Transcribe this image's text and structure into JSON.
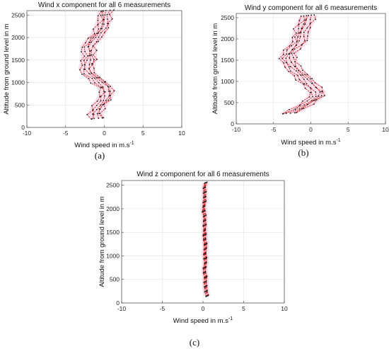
{
  "chart_data": [
    {
      "type": "line",
      "title": "Wind x component for all 6 measurements",
      "xlabel": "Wind speed in m.s",
      "xlabel_sup": "-1",
      "ylabel": "Altitude from ground level in m",
      "xlim": [
        -10,
        10
      ],
      "ylim": [
        0,
        2600
      ],
      "xticks": [
        "-10",
        "-5",
        "0",
        "5",
        "10"
      ],
      "yticks": [
        "0",
        "500",
        "1000",
        "1500",
        "2000",
        "2500"
      ],
      "grid": true,
      "caption": "(a)",
      "line_color": "#cc1a1a",
      "marker_color": "#1a1a1a",
      "band_color": "#f3a7c8",
      "profile": [
        [
          200,
          -1.0
        ],
        [
          300,
          -1.2
        ],
        [
          400,
          -0.9
        ],
        [
          500,
          -0.6
        ],
        [
          600,
          -0.2
        ],
        [
          700,
          0.2
        ],
        [
          800,
          0.3
        ],
        [
          900,
          0.1
        ],
        [
          1000,
          -0.7
        ],
        [
          1100,
          -1.4
        ],
        [
          1200,
          -2.0
        ],
        [
          1300,
          -2.3
        ],
        [
          1400,
          -2.2
        ],
        [
          1500,
          -2.0
        ],
        [
          1600,
          -2.0
        ],
        [
          1700,
          -2.0
        ],
        [
          1800,
          -2.1
        ],
        [
          1900,
          -1.7
        ],
        [
          2000,
          -1.1
        ],
        [
          2100,
          -0.7
        ],
        [
          2200,
          -0.4
        ],
        [
          2300,
          -0.2
        ],
        [
          2400,
          0.0
        ],
        [
          2500,
          0.1
        ],
        [
          2600,
          0.2
        ]
      ],
      "offsets": [
        -0.8,
        -0.4,
        -0.1,
        0.2,
        0.5,
        0.8
      ]
    },
    {
      "type": "line",
      "title": "Wind y component for all 6 measurements",
      "xlabel": "Wind speed in m.s",
      "xlabel_sup": "-1",
      "ylabel": "Altitude from ground level in m",
      "xlim": [
        -10,
        10
      ],
      "ylim": [
        0,
        2600
      ],
      "xticks": [
        "-10",
        "-5",
        "0",
        "5",
        "10"
      ],
      "yticks": [
        "0",
        "500",
        "1000",
        "1500",
        "2000",
        "2500"
      ],
      "grid": true,
      "caption": "(b)",
      "line_color": "#cc1a1a",
      "marker_color": "#1a1a1a",
      "band_color": "#f3a7c8",
      "profile": [
        [
          250,
          -3.0
        ],
        [
          350,
          -1.8
        ],
        [
          450,
          -0.8
        ],
        [
          550,
          0.0
        ],
        [
          650,
          0.6
        ],
        [
          750,
          0.8
        ],
        [
          850,
          0.3
        ],
        [
          950,
          -0.3
        ],
        [
          1050,
          -0.9
        ],
        [
          1150,
          -1.5
        ],
        [
          1250,
          -2.0
        ],
        [
          1350,
          -2.5
        ],
        [
          1450,
          -2.9
        ],
        [
          1550,
          -3.1
        ],
        [
          1650,
          -3.0
        ],
        [
          1750,
          -2.6
        ],
        [
          1850,
          -2.0
        ],
        [
          1950,
          -1.6
        ],
        [
          2050,
          -1.4
        ],
        [
          2150,
          -1.3
        ],
        [
          2250,
          -1.2
        ],
        [
          2350,
          -0.9
        ],
        [
          2450,
          -0.6
        ],
        [
          2550,
          -0.3
        ]
      ],
      "offsets": [
        -0.9,
        -0.5,
        -0.1,
        0.2,
        0.6,
        1.0
      ]
    },
    {
      "type": "line",
      "title": "Wind z component for all 6 measurements",
      "xlabel": "Wind speed in m.s",
      "xlabel_sup": "-1",
      "ylabel": "Altitude from ground level in m",
      "xlim": [
        -10,
        10
      ],
      "ylim": [
        0,
        2600
      ],
      "xticks": [
        "-10",
        "-5",
        "0",
        "5",
        "10"
      ],
      "yticks": [
        "0",
        "500",
        "1000",
        "1500",
        "2000",
        "2500"
      ],
      "grid": true,
      "caption": "(c)",
      "line_color": "#cc1a1a",
      "marker_color": "#1a1a1a",
      "band_color": "#f3a7c8",
      "profile": [
        [
          150,
          0.5
        ],
        [
          250,
          0.4
        ],
        [
          350,
          0.3
        ],
        [
          450,
          0.3
        ],
        [
          550,
          0.3
        ],
        [
          650,
          0.2
        ],
        [
          750,
          0.2
        ],
        [
          850,
          0.3
        ],
        [
          950,
          0.3
        ],
        [
          1050,
          0.2
        ],
        [
          1150,
          0.3
        ],
        [
          1250,
          0.3
        ],
        [
          1350,
          0.2
        ],
        [
          1450,
          0.2
        ],
        [
          1550,
          0.2
        ],
        [
          1650,
          0.2
        ],
        [
          1750,
          0.2
        ],
        [
          1850,
          0.2
        ],
        [
          1950,
          0.1
        ],
        [
          2050,
          0.1
        ],
        [
          2150,
          0.2
        ],
        [
          2250,
          0.2
        ],
        [
          2350,
          0.2
        ],
        [
          2450,
          0.2
        ],
        [
          2550,
          0.3
        ]
      ],
      "offsets": [
        -0.15,
        -0.08,
        0.0,
        0.05,
        0.1,
        0.15
      ]
    }
  ]
}
